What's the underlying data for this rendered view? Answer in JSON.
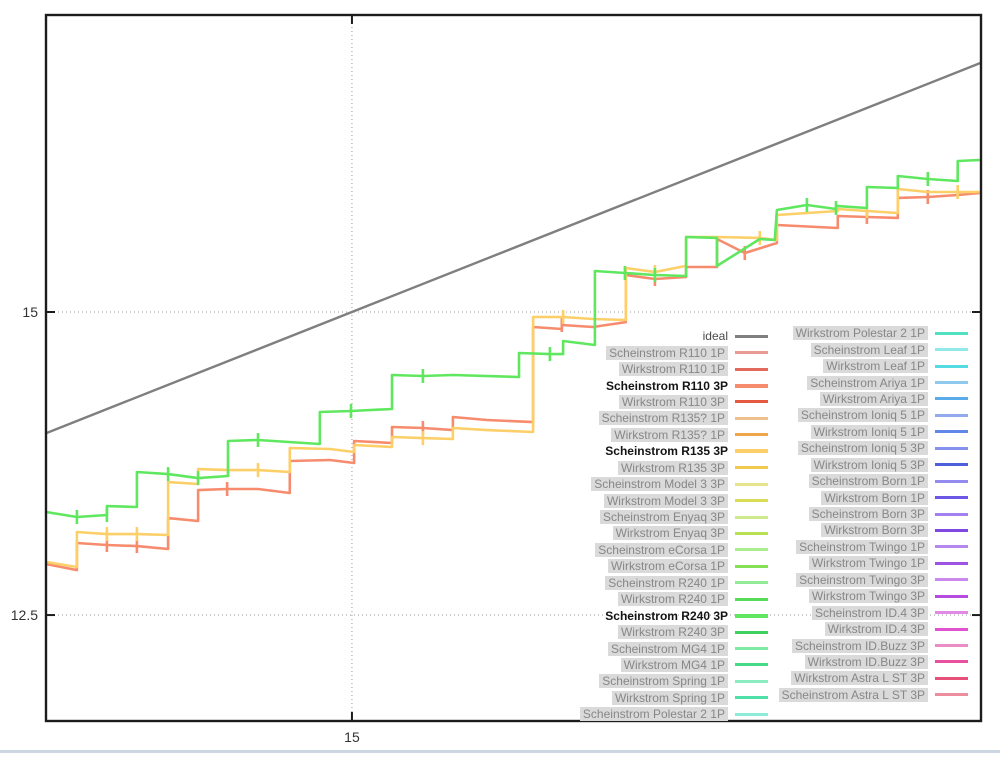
{
  "page": {
    "background": "#ffffff",
    "bottom_separator_color": "#cdd7e4"
  },
  "chart_data": {
    "type": "line",
    "title": "",
    "xlabel": "",
    "ylabel": "",
    "xlim": [
      14.0,
      17.056
    ],
    "ylim": [
      11.626,
      17.45
    ],
    "xticks": [
      {
        "value": 15,
        "label": "15"
      }
    ],
    "yticks": [
      {
        "value": 12.5,
        "label": "12.5"
      },
      {
        "value": 15,
        "label": "15"
      }
    ],
    "grid": "dotted-at-ticks",
    "legend_position": "right-inside-two-columns",
    "series": [
      {
        "name": "ideal",
        "color": "#7f7f7f",
        "width": 2.4,
        "points": [
          [
            14.0,
            14.0
          ],
          [
            17.056,
            17.056
          ]
        ],
        "whiskers": []
      },
      {
        "name": "Scheinstrom R110 3P",
        "color": "#f78b6d",
        "width": 2.6,
        "points": [
          [
            14.0,
            12.921
          ],
          [
            14.101,
            12.871
          ],
          [
            14.101,
            13.094
          ],
          [
            14.199,
            13.078
          ],
          [
            14.297,
            13.069
          ],
          [
            14.399,
            13.045
          ],
          [
            14.399,
            13.3
          ],
          [
            14.497,
            13.276
          ],
          [
            14.497,
            13.531
          ],
          [
            14.592,
            13.54
          ],
          [
            14.693,
            13.54
          ],
          [
            14.797,
            13.507
          ],
          [
            14.797,
            13.771
          ],
          [
            14.928,
            13.779
          ],
          [
            15.007,
            13.754
          ],
          [
            15.007,
            13.936
          ],
          [
            15.131,
            13.919
          ],
          [
            15.131,
            14.051
          ],
          [
            15.232,
            14.043
          ],
          [
            15.33,
            14.026
          ],
          [
            15.33,
            14.134
          ],
          [
            15.441,
            14.109
          ],
          [
            15.592,
            14.092
          ],
          [
            15.592,
            14.876
          ],
          [
            15.686,
            14.86
          ],
          [
            15.686,
            14.893
          ],
          [
            15.788,
            14.876
          ],
          [
            15.895,
            14.917
          ],
          [
            15.895,
            15.305
          ],
          [
            15.99,
            15.272
          ],
          [
            16.092,
            15.289
          ],
          [
            16.092,
            15.371
          ],
          [
            16.193,
            15.371
          ],
          [
            16.193,
            15.602
          ],
          [
            16.284,
            15.487
          ],
          [
            16.389,
            15.569
          ],
          [
            16.389,
            15.718
          ],
          [
            16.588,
            15.693
          ],
          [
            16.588,
            15.792
          ],
          [
            16.683,
            15.784
          ],
          [
            16.784,
            15.776
          ],
          [
            16.784,
            15.941
          ],
          [
            16.882,
            15.949
          ],
          [
            16.98,
            15.965
          ],
          [
            17.052,
            15.982
          ]
        ],
        "whiskers": [
          [
            14.199,
            13.078
          ],
          [
            14.297,
            13.069
          ],
          [
            14.592,
            13.54
          ],
          [
            15.232,
            14.043
          ],
          [
            15.686,
            14.893
          ],
          [
            15.99,
            15.272
          ],
          [
            16.284,
            15.487
          ],
          [
            16.683,
            15.784
          ],
          [
            16.882,
            15.949
          ]
        ]
      },
      {
        "name": "Scheinstrom R135 3P",
        "color": "#fccf68",
        "width": 2.6,
        "points": [
          [
            14.0,
            12.938
          ],
          [
            14.101,
            12.896
          ],
          [
            14.101,
            13.185
          ],
          [
            14.199,
            13.168
          ],
          [
            14.297,
            13.168
          ],
          [
            14.399,
            13.16
          ],
          [
            14.399,
            13.597
          ],
          [
            14.497,
            13.581
          ],
          [
            14.497,
            13.704
          ],
          [
            14.595,
            13.696
          ],
          [
            14.693,
            13.696
          ],
          [
            14.797,
            13.68
          ],
          [
            14.797,
            13.878
          ],
          [
            14.928,
            13.87
          ],
          [
            15.007,
            13.845
          ],
          [
            15.007,
            13.903
          ],
          [
            15.131,
            13.886
          ],
          [
            15.131,
            13.969
          ],
          [
            15.232,
            13.96
          ],
          [
            15.33,
            13.952
          ],
          [
            15.33,
            14.043
          ],
          [
            15.441,
            14.026
          ],
          [
            15.592,
            14.01
          ],
          [
            15.592,
            14.959
          ],
          [
            15.69,
            14.959
          ],
          [
            15.788,
            14.942
          ],
          [
            15.895,
            14.934
          ],
          [
            15.895,
            15.363
          ],
          [
            15.99,
            15.33
          ],
          [
            16.092,
            15.38
          ],
          [
            16.092,
            15.619
          ],
          [
            16.193,
            15.619
          ],
          [
            16.333,
            15.611
          ],
          [
            16.389,
            15.594
          ],
          [
            16.389,
            15.8
          ],
          [
            16.588,
            15.833
          ],
          [
            16.588,
            15.85
          ],
          [
            16.683,
            15.833
          ],
          [
            16.784,
            15.817
          ],
          [
            16.784,
            16.015
          ],
          [
            16.882,
            15.99
          ],
          [
            16.98,
            15.99
          ],
          [
            17.052,
            15.99
          ]
        ],
        "whiskers": [
          [
            14.199,
            13.168
          ],
          [
            14.297,
            13.168
          ],
          [
            14.595,
            13.696
          ],
          [
            14.693,
            13.696
          ],
          [
            15.232,
            13.96
          ],
          [
            15.69,
            14.959
          ],
          [
            15.99,
            15.33
          ],
          [
            16.333,
            15.611
          ],
          [
            16.683,
            15.833
          ],
          [
            16.98,
            15.99
          ]
        ]
      },
      {
        "name": "Scheinstrom R240 3P",
        "color": "#5fe85f",
        "width": 2.6,
        "points": [
          [
            14.0,
            13.35
          ],
          [
            14.101,
            13.309
          ],
          [
            14.199,
            13.325
          ],
          [
            14.199,
            13.399
          ],
          [
            14.297,
            13.391
          ],
          [
            14.297,
            13.68
          ],
          [
            14.399,
            13.663
          ],
          [
            14.497,
            13.63
          ],
          [
            14.595,
            13.647
          ],
          [
            14.595,
            13.936
          ],
          [
            14.693,
            13.944
          ],
          [
            14.895,
            13.911
          ],
          [
            14.895,
            14.175
          ],
          [
            14.997,
            14.183
          ],
          [
            15.131,
            14.2
          ],
          [
            15.131,
            14.48
          ],
          [
            15.232,
            14.472
          ],
          [
            15.33,
            14.48
          ],
          [
            15.546,
            14.464
          ],
          [
            15.546,
            14.662
          ],
          [
            15.647,
            14.653
          ],
          [
            15.69,
            14.653
          ],
          [
            15.69,
            14.761
          ],
          [
            15.794,
            14.728
          ],
          [
            15.794,
            15.338
          ],
          [
            15.892,
            15.322
          ],
          [
            15.99,
            15.305
          ],
          [
            16.092,
            15.297
          ],
          [
            16.092,
            15.619
          ],
          [
            16.193,
            15.611
          ],
          [
            16.193,
            15.38
          ],
          [
            16.333,
            15.602
          ],
          [
            16.382,
            15.594
          ],
          [
            16.389,
            15.841
          ],
          [
            16.487,
            15.883
          ],
          [
            16.582,
            15.85
          ],
          [
            16.582,
            15.875
          ],
          [
            16.683,
            15.858
          ],
          [
            16.683,
            16.031
          ],
          [
            16.784,
            16.023
          ],
          [
            16.784,
            16.122
          ],
          [
            16.882,
            16.097
          ],
          [
            16.98,
            16.081
          ],
          [
            16.98,
            16.246
          ],
          [
            17.052,
            16.254
          ]
        ],
        "whiskers": [
          [
            14.101,
            13.309
          ],
          [
            14.199,
            13.325
          ],
          [
            14.399,
            13.663
          ],
          [
            14.497,
            13.63
          ],
          [
            14.693,
            13.944
          ],
          [
            14.997,
            14.183
          ],
          [
            15.232,
            14.472
          ],
          [
            15.647,
            14.653
          ],
          [
            15.892,
            15.322
          ],
          [
            15.99,
            15.305
          ],
          [
            16.487,
            15.883
          ],
          [
            16.582,
            15.858
          ],
          [
            16.882,
            16.097
          ]
        ]
      }
    ]
  },
  "legend": {
    "columns": [
      [
        {
          "label": "ideal",
          "style": "ideal",
          "color": "#7f7f7f"
        },
        {
          "label": "Scheinstrom R110 1P",
          "style": "disabled",
          "color": "#e89b92"
        },
        {
          "label": "Wirkstrom R110 1P",
          "style": "disabled",
          "color": "#e26a5c"
        },
        {
          "label": "Scheinstrom R110 3P",
          "style": "bold",
          "color": "#f78b6d"
        },
        {
          "label": "Wirkstrom R110 3P",
          "style": "disabled",
          "color": "#e4593f"
        },
        {
          "label": "Scheinstrom R135? 1P",
          "style": "disabled",
          "color": "#eec08e"
        },
        {
          "label": "Wirkstrom R135? 1P",
          "style": "disabled",
          "color": "#eda64c"
        },
        {
          "label": "Scheinstrom R135 3P",
          "style": "bold",
          "color": "#fccf68"
        },
        {
          "label": "Wirkstrom R135 3P",
          "style": "disabled",
          "color": "#f0c94f"
        },
        {
          "label": "Scheinstrom Model 3 3P",
          "style": "disabled",
          "color": "#e6e38d"
        },
        {
          "label": "Wirkstrom Model 3 3P",
          "style": "disabled",
          "color": "#d9dc55"
        },
        {
          "label": "Scheinstrom Enyaq 3P",
          "style": "disabled",
          "color": "#cfe98d"
        },
        {
          "label": "Wirkstrom Enyaq 3P",
          "style": "disabled",
          "color": "#b7e055"
        },
        {
          "label": "Scheinstrom eCorsa 1P",
          "style": "disabled",
          "color": "#aaec8e"
        },
        {
          "label": "Wirkstrom eCorsa 1P",
          "style": "disabled",
          "color": "#86e055"
        },
        {
          "label": "Scheinstrom R240 1P",
          "style": "disabled",
          "color": "#92ec97"
        },
        {
          "label": "Wirkstrom R240 1P",
          "style": "disabled",
          "color": "#58dc58"
        },
        {
          "label": "Scheinstrom R240 3P",
          "style": "bold",
          "color": "#5fe85f"
        },
        {
          "label": "Wirkstrom R240 3P",
          "style": "disabled",
          "color": "#3fd060"
        },
        {
          "label": "Scheinstrom MG4 1P",
          "style": "disabled",
          "color": "#7eeaa6"
        },
        {
          "label": "Wirkstrom MG4 1P",
          "style": "disabled",
          "color": "#47da86"
        },
        {
          "label": "Scheinstrom Spring 1P",
          "style": "disabled",
          "color": "#8aecc0"
        },
        {
          "label": "Wirkstrom Spring 1P",
          "style": "disabled",
          "color": "#4fdfa8"
        },
        {
          "label": "Scheinstrom Polestar 2 1P",
          "style": "disabled",
          "color": "#8eecd6"
        }
      ],
      [
        {
          "label": "Wirkstrom Polestar 2 1P",
          "style": "disabled",
          "color": "#52e0c2"
        },
        {
          "label": "Scheinstrom Leaf 1P",
          "style": "disabled",
          "color": "#92e9e9"
        },
        {
          "label": "Wirkstrom Leaf 1P",
          "style": "disabled",
          "color": "#54dce2"
        },
        {
          "label": "Scheinstrom Ariya 1P",
          "style": "disabled",
          "color": "#8ec9ee"
        },
        {
          "label": "Wirkstrom Ariya 1P",
          "style": "disabled",
          "color": "#5aabe9"
        },
        {
          "label": "Scheinstrom Ioniq 5 1P",
          "style": "disabled",
          "color": "#94aaef"
        },
        {
          "label": "Wirkstrom Ioniq 5 1P",
          "style": "disabled",
          "color": "#6187e8"
        },
        {
          "label": "Scheinstrom Ioniq 5 3P",
          "style": "disabled",
          "color": "#8491ef"
        },
        {
          "label": "Wirkstrom Ioniq 5 3P",
          "style": "disabled",
          "color": "#4c60da"
        },
        {
          "label": "Scheinstrom Born 1P",
          "style": "disabled",
          "color": "#958aef"
        },
        {
          "label": "Wirkstrom Born 1P",
          "style": "disabled",
          "color": "#6d58e5"
        },
        {
          "label": "Scheinstrom Born 3P",
          "style": "disabled",
          "color": "#a37fef"
        },
        {
          "label": "Wirkstrom Born 3P",
          "style": "disabled",
          "color": "#8047e2"
        },
        {
          "label": "Scheinstrom Twingo 1P",
          "style": "disabled",
          "color": "#b688ed"
        },
        {
          "label": "Wirkstrom Twingo 1P",
          "style": "disabled",
          "color": "#9e53e3"
        },
        {
          "label": "Scheinstrom Twingo 3P",
          "style": "disabled",
          "color": "#cb88ed"
        },
        {
          "label": "Wirkstrom Twingo 3P",
          "style": "disabled",
          "color": "#b64bdf"
        },
        {
          "label": "Scheinstrom ID.4 3P",
          "style": "disabled",
          "color": "#e28be5"
        },
        {
          "label": "Wirkstrom ID.4 3P",
          "style": "disabled",
          "color": "#df53cf"
        },
        {
          "label": "Scheinstrom ID.Buzz 3P",
          "style": "disabled",
          "color": "#eb8dc5"
        },
        {
          "label": "Wirkstrom ID.Buzz 3P",
          "style": "disabled",
          "color": "#e7519f"
        },
        {
          "label": "Wirkstrom Astra L ST 3P",
          "style": "disabled",
          "color": "#e75179"
        },
        {
          "label": "Scheinstrom Astra L ST 3P",
          "style": "disabled",
          "color": "#eb8d9d"
        }
      ]
    ]
  }
}
